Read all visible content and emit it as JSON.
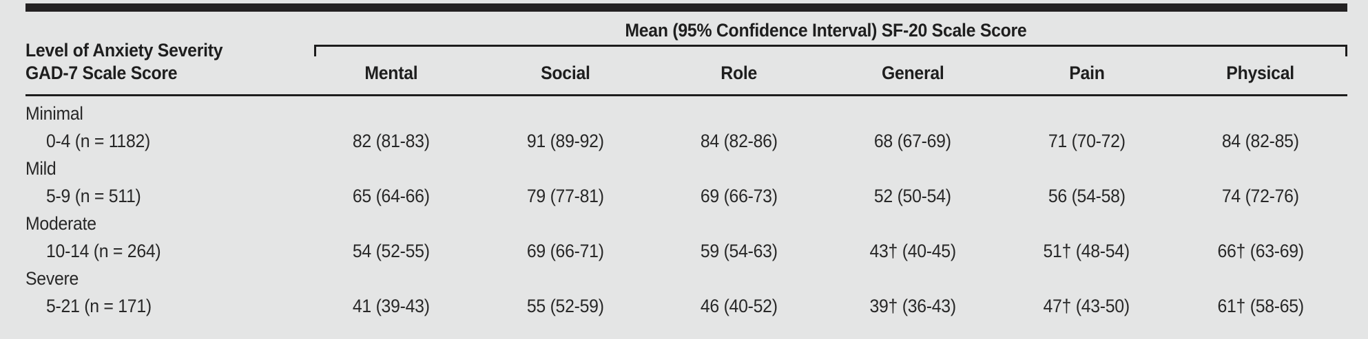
{
  "table": {
    "stub_header_line1": "Level of Anxiety Severity",
    "stub_header_line2": "GAD-7 Scale Score",
    "span_header": "Mean (95% Confidence Interval) SF-20 Scale Score",
    "columns": [
      "Mental",
      "Social",
      "Role",
      "General",
      "Pain",
      "Physical"
    ],
    "groups": [
      {
        "label": "Minimal",
        "sub": "0-4 (n = 1182)",
        "values": [
          "82 (81-83)",
          "91 (89-92)",
          "84 (82-86)",
          "68 (67-69)",
          "71 (70-72)",
          "84 (82-85)"
        ]
      },
      {
        "label": "Mild",
        "sub": "5-9 (n = 511)",
        "values": [
          "65 (64-66)",
          "79 (77-81)",
          "69 (66-73)",
          "52 (50-54)",
          "56 (54-58)",
          "74 (72-76)"
        ]
      },
      {
        "label": "Moderate",
        "sub": "10-14 (n = 264)",
        "values": [
          "54 (52-55)",
          "69 (66-71)",
          "59 (54-63)",
          "43† (40-45)",
          "51† (48-54)",
          "66† (63-69)"
        ]
      },
      {
        "label": "Severe",
        "sub": "5-21 (n = 171)",
        "values": [
          "41 (39-43)",
          "55 (52-59)",
          "46 (40-52)",
          "39† (36-43)",
          "47† (43-50)",
          "61† (58-65)"
        ]
      }
    ],
    "colors": {
      "background": "#e4e5e5",
      "top_bar": "#232122",
      "rule": "#1c1c1c",
      "text": "#272727"
    }
  }
}
